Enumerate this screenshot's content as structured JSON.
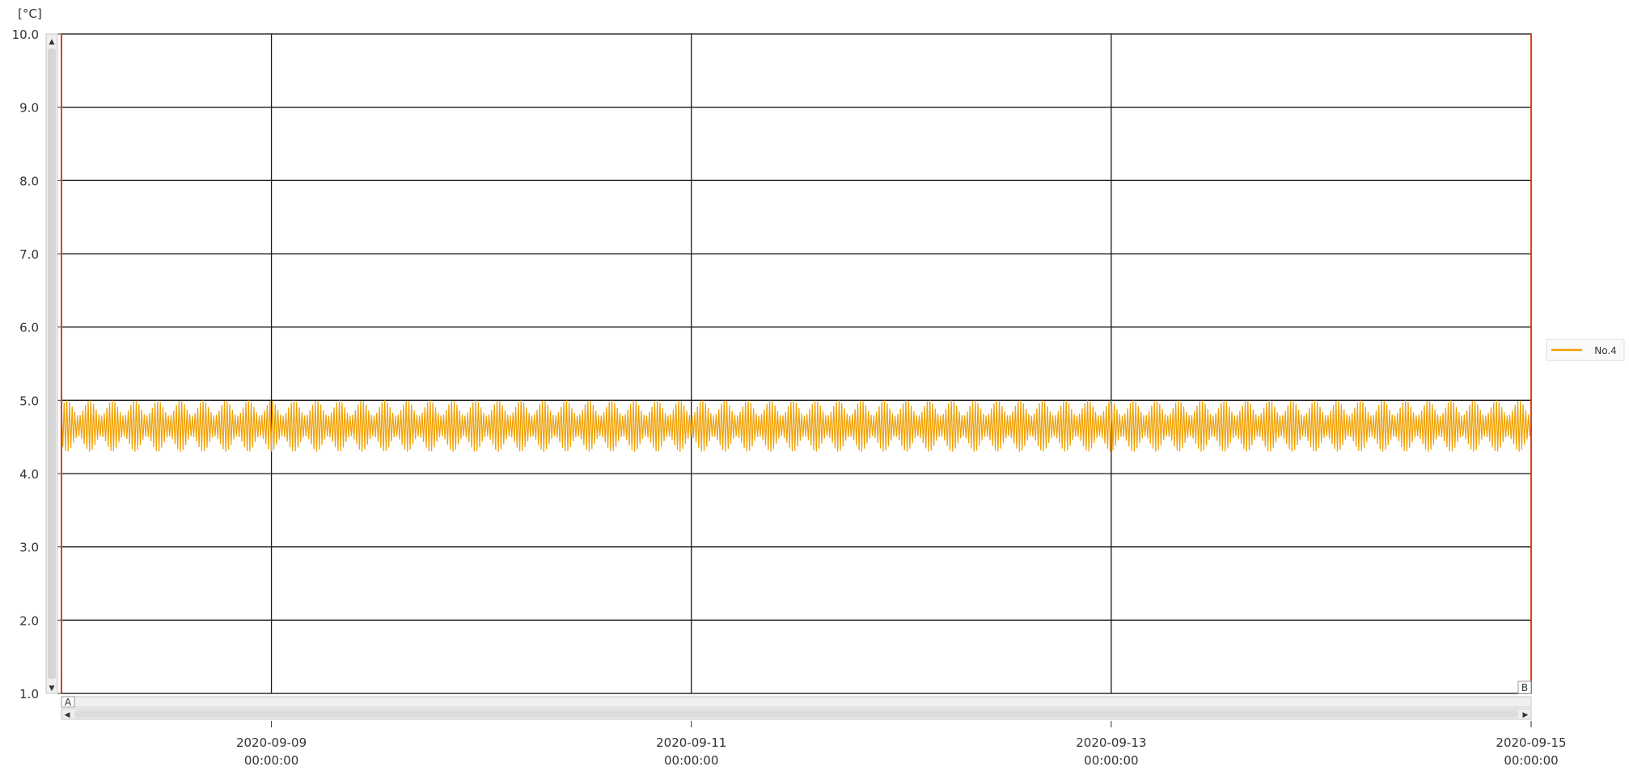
{
  "chart_data": {
    "type": "line",
    "unit_label": "[°C]",
    "ylim": [
      1.0,
      10.0
    ],
    "y_ticks": [
      "10.0",
      "9.0",
      "8.0",
      "7.0",
      "6.0",
      "5.0",
      "4.0",
      "3.0",
      "2.0",
      "1.0"
    ],
    "x_start": "2020-09-08 00:00:00",
    "x_end": "2020-09-15 00:00:00",
    "x_ticks": [
      {
        "date": "2020-09-09",
        "time": "00:00:00"
      },
      {
        "date": "2020-09-11",
        "time": "00:00:00"
      },
      {
        "date": "2020-09-13",
        "time": "00:00:00"
      },
      {
        "date": "2020-09-15",
        "time": "00:00:00"
      }
    ],
    "series": [
      {
        "name": "No.4",
        "color": "#f0a000",
        "value_min": 4.3,
        "value_max": 5.0
      }
    ],
    "grid": true,
    "legend_position": "right",
    "cursor_a_label": "A",
    "cursor_b_label": "B",
    "cursor_color": "#d9451b"
  }
}
